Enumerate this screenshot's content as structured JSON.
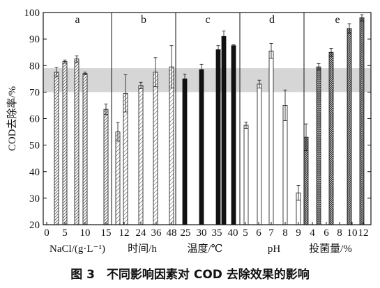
{
  "caption": "图 3　不同影响因素对 COD 去除效果的影响",
  "chart_data": {
    "type": "bar",
    "ylabel": "COD去除率/%",
    "ylim": [
      20,
      100
    ],
    "yticks": [
      "20",
      "30",
      "40",
      "50",
      "60",
      "70",
      "80",
      "90",
      "100"
    ],
    "grid": false,
    "highlight_band": [
      70,
      79
    ],
    "panels": [
      {
        "letter": "a",
        "xlabel": "NaCl/(g·L⁻¹)",
        "pattern": "hatch-dense",
        "ticks": [
          "0",
          "5",
          "10",
          "15"
        ],
        "bars": [
          {
            "x": "0",
            "value": 77.5,
            "err": 1.8
          },
          {
            "x": "5",
            "value": 81.5,
            "err": 0.6
          },
          {
            "x": "10",
            "value": 82.5,
            "err": 1.2
          },
          {
            "x": "15",
            "value": 77.0,
            "err": 0.5
          },
          {
            "x": "15",
            "value": 63.5,
            "err": 2.0
          }
        ]
      },
      {
        "letter": "b",
        "xlabel": "时间/h",
        "pattern": "hatch-light",
        "ticks": [
          "12",
          "24",
          "36",
          "48"
        ],
        "bars": [
          {
            "x": "12",
            "value": 55.0,
            "err": 3.5
          },
          {
            "x": "12",
            "value": 69.5,
            "err": 7.0
          },
          {
            "x": "24",
            "value": 72.5,
            "err": 1.2
          },
          {
            "x": "36",
            "value": 77.5,
            "err": 5.5
          },
          {
            "x": "48",
            "value": 79.5,
            "err": 8.0
          }
        ]
      },
      {
        "letter": "c",
        "xlabel": "温度/℃",
        "pattern": "solid",
        "ticks": [
          "25",
          "30",
          "35",
          "40"
        ],
        "bars": [
          {
            "x": "25",
            "value": 75.0,
            "err": 1.8
          },
          {
            "x": "30",
            "value": 78.5,
            "err": 2.0
          },
          {
            "x": "35",
            "value": 86.0,
            "err": 1.5
          },
          {
            "x": "35",
            "value": 91.0,
            "err": 2.0
          },
          {
            "x": "40",
            "value": 87.5,
            "err": 0.5
          }
        ]
      },
      {
        "letter": "d",
        "xlabel": "pH",
        "pattern": "white",
        "ticks": [
          "5",
          "6",
          "7",
          "8",
          "9"
        ],
        "bars": [
          {
            "x": "5",
            "value": 57.5,
            "err": 1.2
          },
          {
            "x": "6",
            "value": 73.0,
            "err": 1.5
          },
          {
            "x": "7",
            "value": 85.5,
            "err": 2.8
          },
          {
            "x": "8",
            "value": 65.0,
            "err": 5.8
          },
          {
            "x": "9",
            "value": 32.0,
            "err": 2.8
          }
        ]
      },
      {
        "letter": "e",
        "xlabel": "投菌量/%",
        "pattern": "crosshatch",
        "ticks": [
          "4",
          "6",
          "8",
          "10",
          "12"
        ],
        "bars": [
          {
            "x": "4",
            "value": 53.0,
            "err": 5.0
          },
          {
            "x": "4",
            "value": 79.5,
            "err": 1.2
          },
          {
            "x": "6",
            "value": 85.0,
            "err": 1.5
          },
          {
            "x": "10",
            "value": 94.0,
            "err": 1.8
          },
          {
            "x": "12",
            "value": 98.0,
            "err": 1.2
          }
        ]
      }
    ]
  }
}
